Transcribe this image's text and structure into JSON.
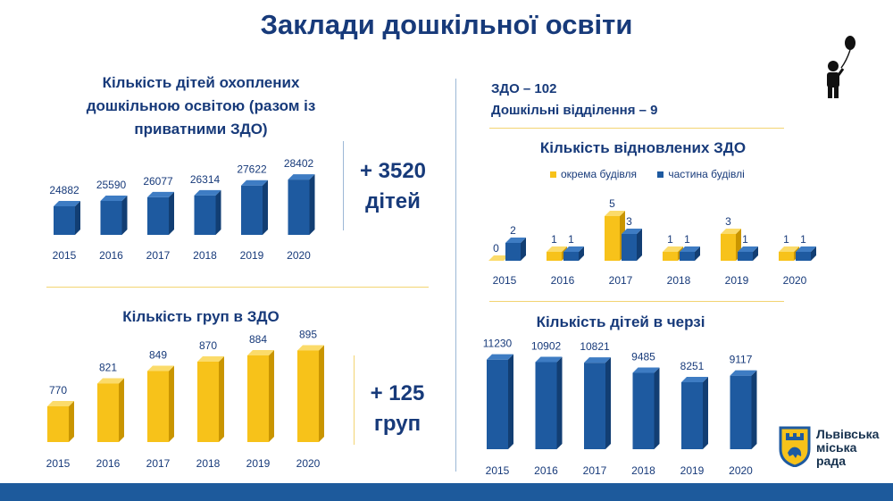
{
  "page": {
    "title": "Заклади дошкільної освіти",
    "zdo_line": "ЗДО – 102",
    "branches_line": "Дошкільні відділення – 9",
    "children_delta_1": "+ 3520",
    "children_delta_2": "дітей",
    "groups_delta_1": "+ 125",
    "groups_delta_2": "груп",
    "logo_text_1": "Львівська",
    "logo_text_2": "міська",
    "logo_text_3": "рада"
  },
  "colors": {
    "blue": "#1e5aa0",
    "yellow": "#f7c21a",
    "title": "#173a7a",
    "divider": "#f3d472",
    "footer": "#1d5a9c"
  },
  "chart_data": [
    {
      "id": "children",
      "type": "bar",
      "title_lines": [
        "Кількість дітей охоплених",
        "дошкільною освітою (разом із",
        "приватними ЗДО)"
      ],
      "categories": [
        "2015",
        "2016",
        "2017",
        "2018",
        "2019",
        "2020"
      ],
      "values": [
        24882,
        25590,
        26077,
        26314,
        27622,
        28402
      ],
      "color": "blue"
    },
    {
      "id": "groups",
      "type": "bar",
      "title": "Кількість груп в ЗДО",
      "categories": [
        "2015",
        "2016",
        "2017",
        "2018",
        "2019",
        "2020"
      ],
      "values": [
        770,
        821,
        849,
        870,
        884,
        895
      ],
      "color": "yellow"
    },
    {
      "id": "restored",
      "type": "bar",
      "title": "Кількість відновлених ЗДО",
      "legend": [
        "окрема будівля",
        "частина будівлі"
      ],
      "categories": [
        "2015",
        "2016",
        "2017",
        "2018",
        "2019",
        "2020"
      ],
      "series": [
        {
          "name": "окрема будівля",
          "values": [
            0,
            1,
            5,
            1,
            3,
            1
          ],
          "color": "yellow"
        },
        {
          "name": "частина будівлі",
          "values": [
            2,
            1,
            3,
            1,
            1,
            1
          ],
          "color": "blue"
        }
      ]
    },
    {
      "id": "queue",
      "type": "bar",
      "title": "Кількість дітей в черзі",
      "categories": [
        "2015",
        "2016",
        "2017",
        "2018",
        "2019",
        "2020"
      ],
      "values": [
        11230,
        10902,
        10821,
        9485,
        8251,
        9117
      ],
      "color": "blue"
    }
  ]
}
